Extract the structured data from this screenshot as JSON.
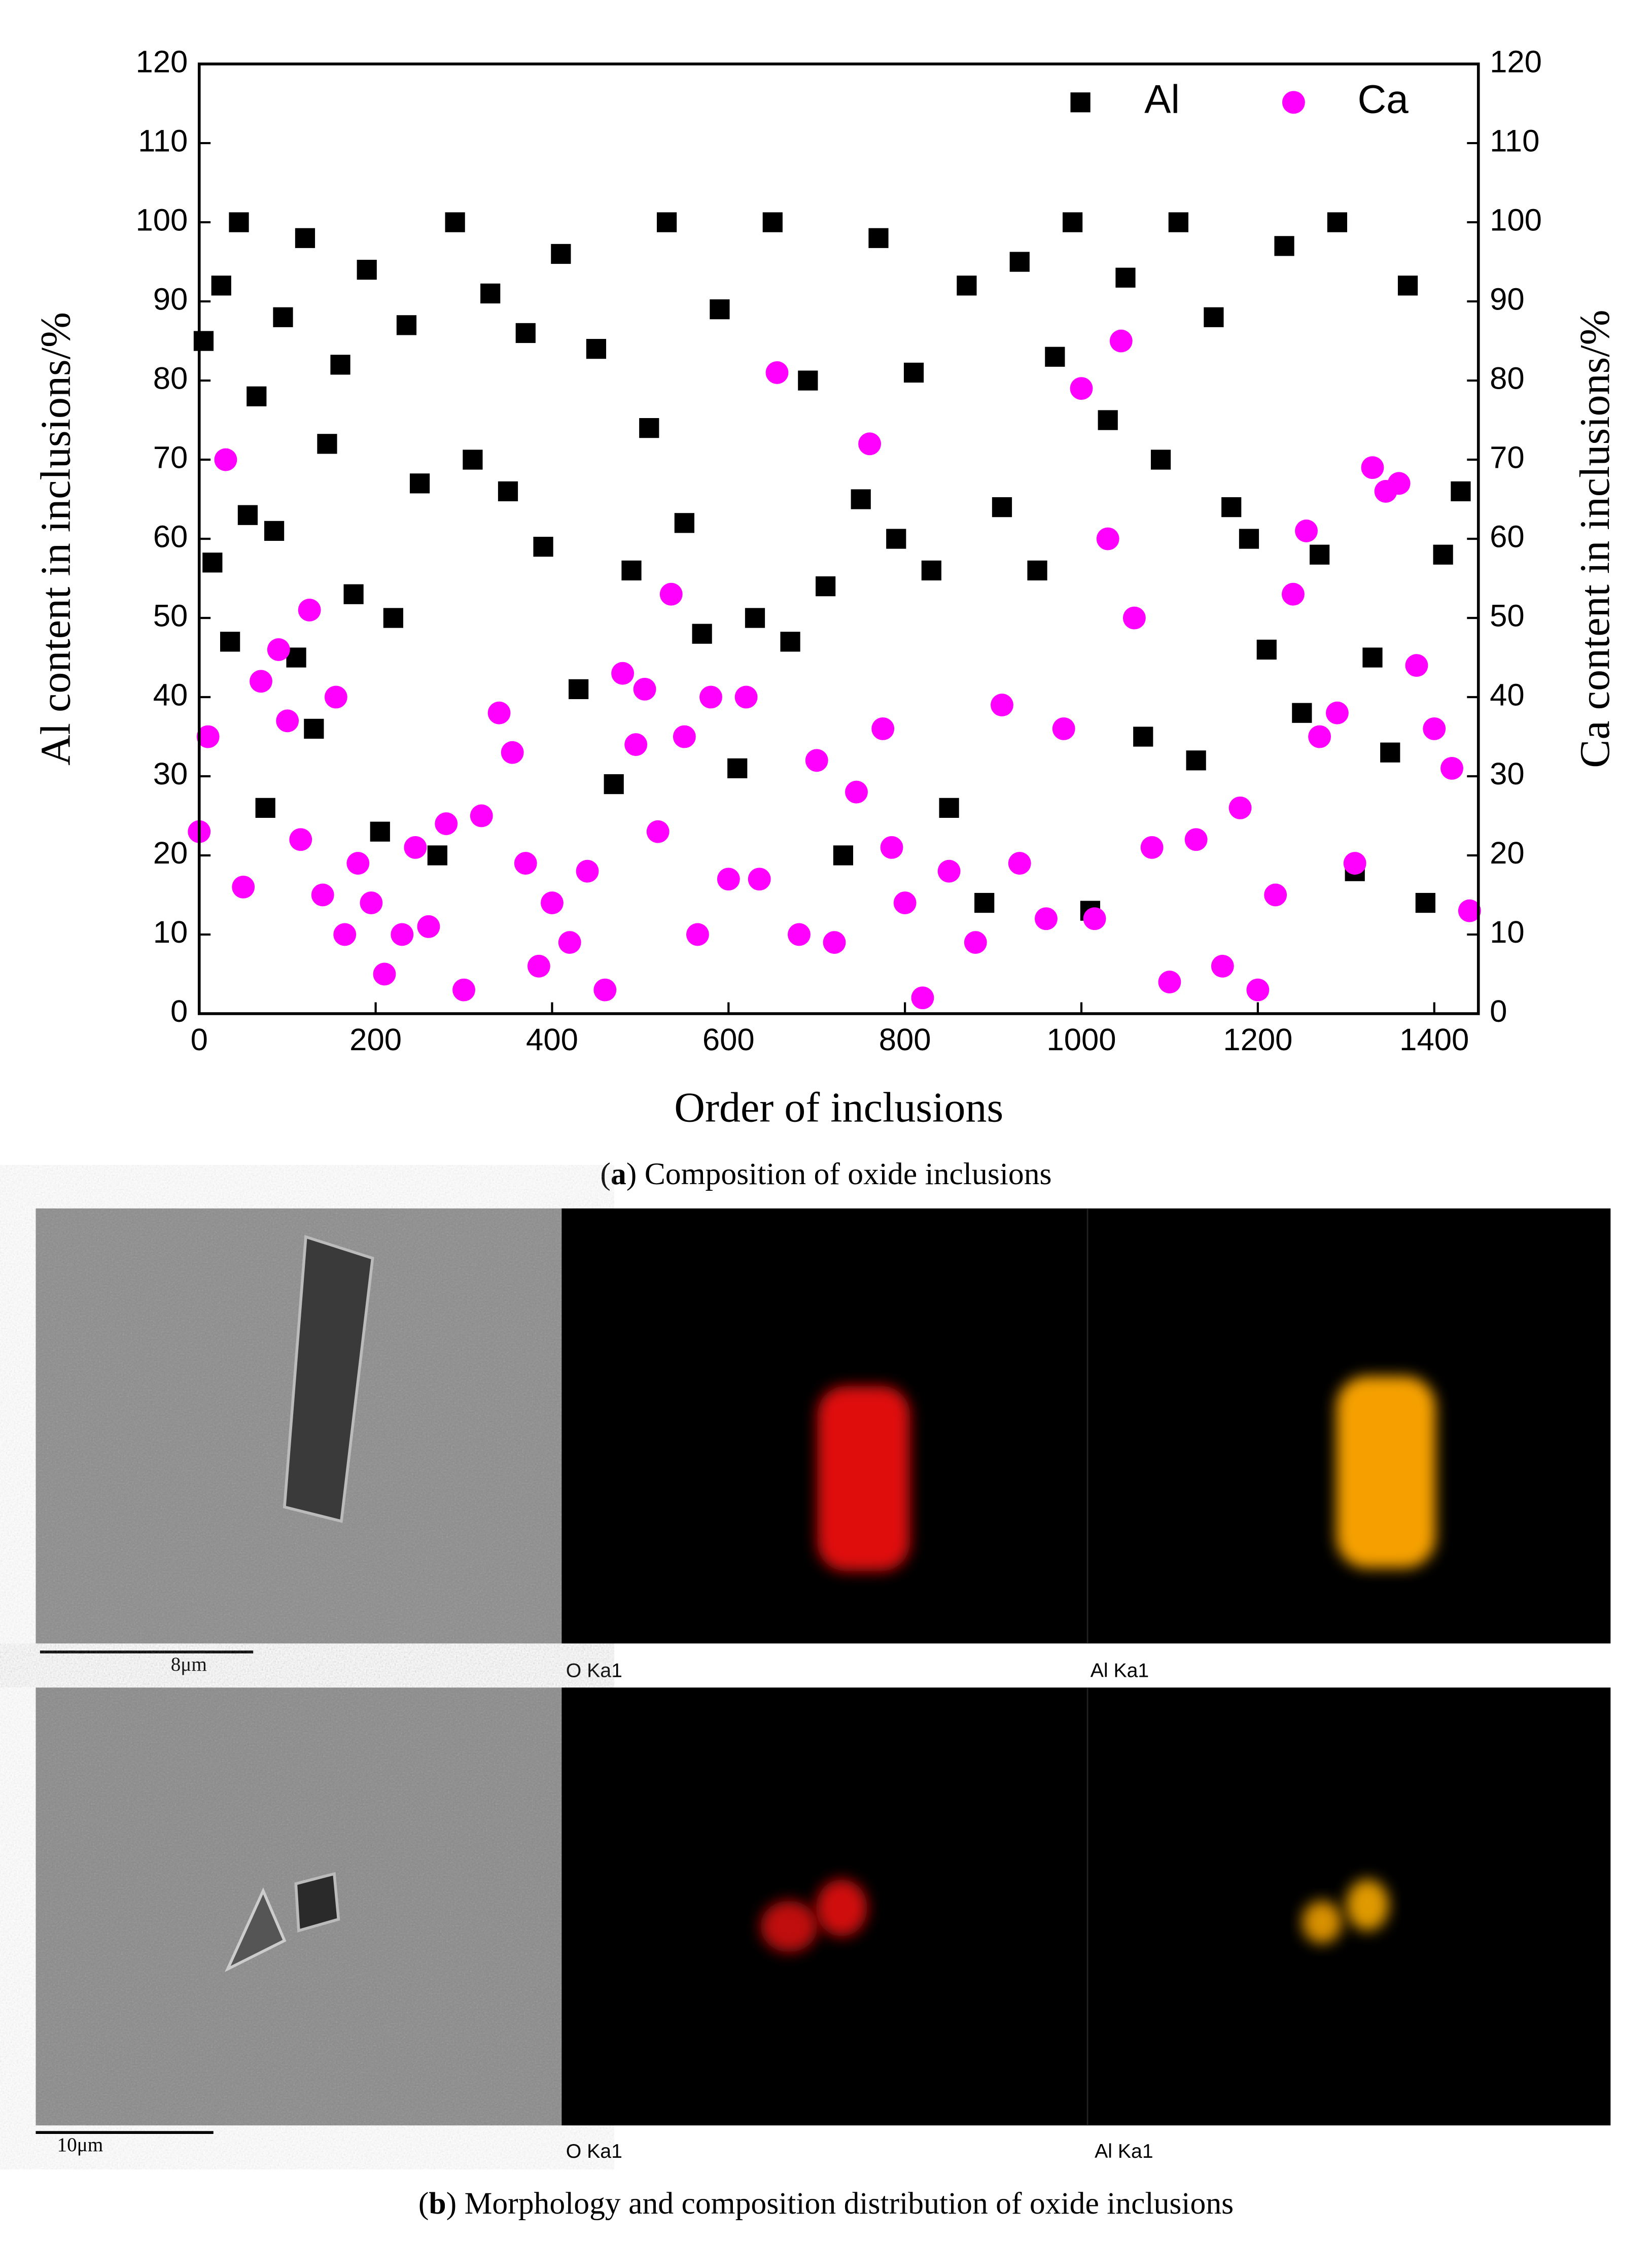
{
  "chart_data": {
    "type": "scatter",
    "xlabel": "Order of inclusions",
    "ylabel": "Al content in inclusions/%",
    "y2label": "Ca content in inclusions/%",
    "xlim": [
      0,
      1450
    ],
    "xticks": [
      0,
      200,
      400,
      600,
      800,
      1000,
      1200,
      1400
    ],
    "ylim": [
      0,
      120
    ],
    "yticks": [
      0,
      10,
      20,
      30,
      40,
      50,
      60,
      70,
      80,
      90,
      100,
      110,
      120
    ],
    "y2lim": [
      0,
      120
    ],
    "y2ticks": [
      0,
      10,
      20,
      30,
      40,
      50,
      60,
      70,
      80,
      90,
      100,
      110,
      120
    ],
    "legend": "top-right",
    "series": [
      {
        "name": "Al",
        "color": "#000000",
        "marker": "square",
        "x": [
          5,
          15,
          25,
          35,
          45,
          55,
          65,
          75,
          85,
          95,
          110,
          120,
          130,
          145,
          160,
          175,
          190,
          205,
          220,
          235,
          250,
          270,
          290,
          310,
          330,
          350,
          370,
          390,
          410,
          430,
          450,
          470,
          490,
          510,
          530,
          550,
          570,
          590,
          610,
          630,
          650,
          670,
          690,
          710,
          730,
          750,
          770,
          790,
          810,
          830,
          850,
          870,
          890,
          910,
          930,
          950,
          970,
          990,
          1010,
          1030,
          1050,
          1070,
          1090,
          1110,
          1130,
          1150,
          1170,
          1190,
          1210,
          1230,
          1250,
          1270,
          1290,
          1310,
          1330,
          1350,
          1370,
          1390,
          1410,
          1430
        ],
        "values": [
          85,
          57,
          92,
          47,
          100,
          63,
          78,
          26,
          61,
          88,
          45,
          98,
          36,
          72,
          82,
          53,
          94,
          23,
          50,
          87,
          67,
          20,
          100,
          70,
          91,
          66,
          86,
          59,
          96,
          41,
          84,
          29,
          56,
          74,
          100,
          62,
          48,
          89,
          31,
          50,
          100,
          47,
          80,
          54,
          20,
          65,
          98,
          60,
          81,
          56,
          26,
          92,
          14,
          64,
          95,
          56,
          83,
          100,
          13,
          75,
          93,
          35,
          70,
          100,
          32,
          88,
          64,
          60,
          46,
          97,
          38,
          58,
          100,
          18,
          45,
          33,
          92,
          14,
          58,
          66
        ]
      },
      {
        "name": "Ca",
        "color": "#ff00ff",
        "marker": "circle",
        "axis": "y2",
        "x": [
          0,
          10,
          30,
          50,
          70,
          90,
          100,
          115,
          125,
          140,
          155,
          165,
          180,
          195,
          210,
          230,
          245,
          260,
          280,
          300,
          320,
          340,
          355,
          370,
          385,
          400,
          420,
          440,
          460,
          480,
          495,
          505,
          520,
          535,
          550,
          565,
          580,
          600,
          620,
          635,
          655,
          680,
          700,
          720,
          745,
          760,
          775,
          785,
          800,
          820,
          850,
          880,
          910,
          930,
          960,
          980,
          1000,
          1015,
          1030,
          1045,
          1060,
          1080,
          1100,
          1130,
          1160,
          1180,
          1200,
          1220,
          1240,
          1255,
          1270,
          1290,
          1310,
          1330,
          1345,
          1360,
          1380,
          1400,
          1420,
          1440
        ],
        "values": [
          23,
          35,
          70,
          16,
          42,
          46,
          37,
          22,
          51,
          15,
          40,
          10,
          19,
          14,
          5,
          10,
          21,
          11,
          24,
          3,
          25,
          38,
          33,
          19,
          6,
          14,
          9,
          18,
          3,
          43,
          34,
          41,
          23,
          53,
          35,
          10,
          40,
          17,
          40,
          17,
          81,
          10,
          32,
          9,
          28,
          72,
          36,
          21,
          14,
          2,
          18,
          9,
          39,
          19,
          12,
          36,
          79,
          12,
          60,
          85,
          50,
          21,
          4,
          22,
          6,
          26,
          3,
          15,
          53,
          61,
          35,
          38,
          19,
          69,
          66,
          67,
          44,
          36,
          31,
          13
        ]
      }
    ]
  },
  "caption_a": {
    "open": "(",
    "letter": "a",
    "rest": ") Composition of oxide inclusions"
  },
  "panel_b": {
    "rows": [
      {
        "scale": "8μm",
        "maps": [
          "O Ka1",
          "Al Ka1"
        ]
      },
      {
        "scale": "10μm",
        "maps": [
          "O Ka1",
          "Al Ka1"
        ]
      }
    ],
    "caption": {
      "open": "(",
      "letter": "b",
      "rest": ") Morphology and composition distribution of oxide inclusions"
    }
  }
}
